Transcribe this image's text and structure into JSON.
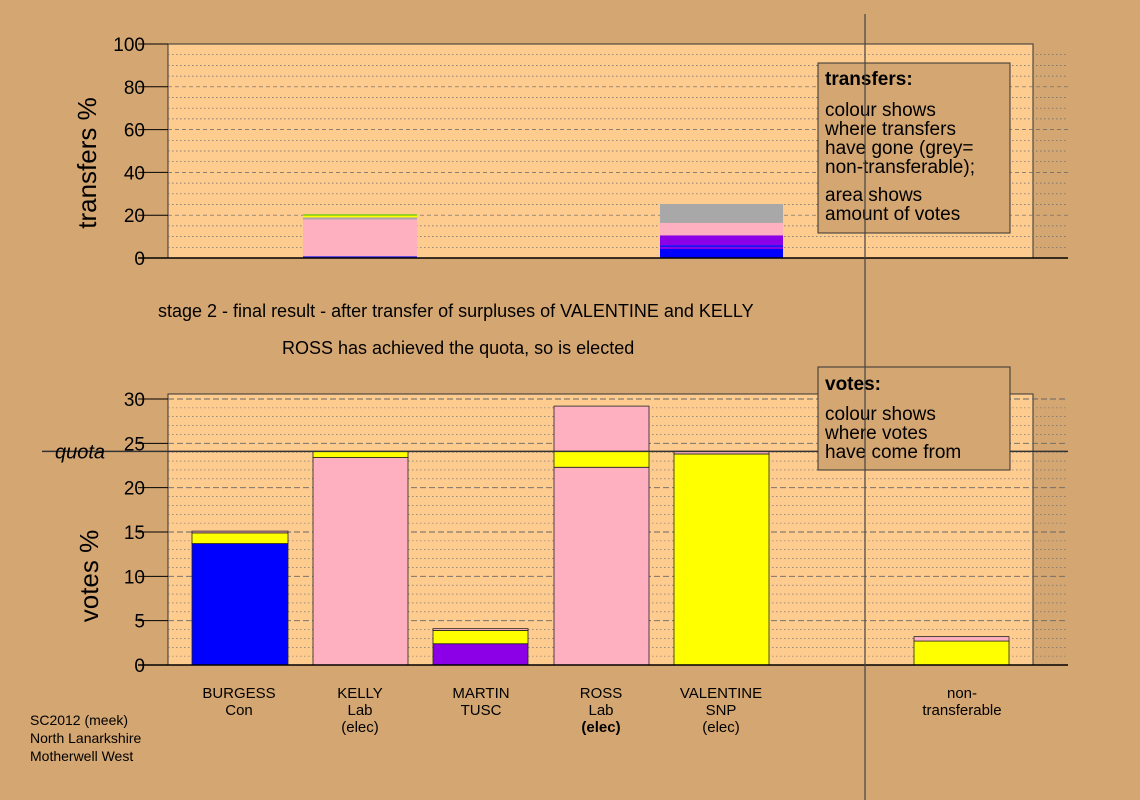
{
  "top_chart": {
    "ylabel": "transfers %",
    "legend": {
      "title": "transfers:",
      "lines1": [
        "colour shows",
        "where transfers",
        "have gone (grey=",
        "non-transferable);"
      ],
      "lines2": [
        "area shows",
        "amount of votes"
      ]
    }
  },
  "captions": {
    "stage": "stage 2 - final result - after transfer of surpluses of VALENTINE and KELLY",
    "result": "ROSS has achieved the quota, so is elected"
  },
  "bottom_chart": {
    "ylabel": "votes %",
    "quota_label": "quota",
    "legend": {
      "title": "votes:",
      "lines": [
        "colour shows",
        "where votes",
        "have come from"
      ]
    }
  },
  "credits": [
    "SC2012 (meek)",
    "North Lanarkshire",
    "Motherwell West"
  ],
  "colors": {
    "background": "#D4A672",
    "plot_area": "#FFCC90",
    "Con": "#0000FF",
    "Lab": "#FFB0C0",
    "SNP": "#FFFF00",
    "TUSC": "#8B00E6",
    "non_transferable": "#A8A8A8",
    "green": "#66CC00"
  },
  "chart_data": [
    {
      "type": "bar",
      "stacked": true,
      "ylabel": "transfers %",
      "ylim": [
        0,
        100
      ],
      "yticks": [
        0,
        20,
        40,
        60,
        80,
        100
      ],
      "grid": true,
      "legend_position": "right",
      "bars": [
        {
          "source": "KELLY",
          "segments": [
            {
              "party": "TUSC",
              "value": 0.3
            },
            {
              "party": "Con",
              "value": 0.5
            },
            {
              "party": "Lab",
              "value": 17.2
            },
            {
              "party": "non_transferable",
              "value": 1.0
            },
            {
              "party": "SNP",
              "value": 0.8
            },
            {
              "party": "green",
              "value": 0.6
            }
          ]
        },
        {
          "source": "VALENTINE",
          "segments": [
            {
              "party": "Con",
              "value": 4.2
            },
            {
              "party": "TUSC",
              "value": 1.0
            },
            {
              "party": "Con",
              "value": 0.8
            },
            {
              "party": "TUSC",
              "value": 4.6
            },
            {
              "party": "Lab",
              "value": 5.8
            },
            {
              "party": "non_transferable",
              "value": 8.8
            }
          ]
        }
      ]
    },
    {
      "type": "bar",
      "stacked": true,
      "ylabel": "votes %",
      "ylim": [
        0,
        30
      ],
      "yticks": [
        0,
        5,
        10,
        15,
        20,
        25,
        30
      ],
      "quota": 24.1,
      "grid": true,
      "legend_position": "right",
      "categories": [
        {
          "name": "BURGESS",
          "party": "Con",
          "status": ""
        },
        {
          "name": "KELLY",
          "party": "Lab",
          "status": "(elec)"
        },
        {
          "name": "MARTIN",
          "party": "TUSC",
          "status": ""
        },
        {
          "name": "ROSS",
          "party": "Lab",
          "status": "(elec)"
        },
        {
          "name": "VALENTINE",
          "party": "SNP",
          "status": "(elec)"
        },
        {
          "name": "non-",
          "party": "transferable",
          "status": ""
        }
      ],
      "series": [
        {
          "name": "BURGESS",
          "segments": [
            {
              "party": "Con",
              "value": 13.7
            },
            {
              "party": "SNP",
              "value": 1.2
            },
            {
              "party": "Lab",
              "value": 0.2
            }
          ]
        },
        {
          "name": "KELLY",
          "segments": [
            {
              "party": "Lab",
              "value": 23.4
            },
            {
              "party": "SNP",
              "value": 0.7
            }
          ]
        },
        {
          "name": "MARTIN",
          "segments": [
            {
              "party": "TUSC",
              "value": 2.4
            },
            {
              "party": "SNP",
              "value": 1.5
            },
            {
              "party": "Lab",
              "value": 0.2
            }
          ]
        },
        {
          "name": "ROSS",
          "segments": [
            {
              "party": "Lab",
              "value": 22.3
            },
            {
              "party": "SNP",
              "value": 1.8
            },
            {
              "party": "Lab",
              "value": 5.1
            }
          ]
        },
        {
          "name": "VALENTINE",
          "segments": [
            {
              "party": "SNP",
              "value": 23.8
            },
            {
              "party": "Lab",
              "value": 0.3
            }
          ]
        },
        {
          "name": "non-transferable",
          "segments": [
            {
              "party": "SNP",
              "value": 2.7
            },
            {
              "party": "Lab",
              "value": 0.5
            }
          ]
        }
      ]
    }
  ]
}
